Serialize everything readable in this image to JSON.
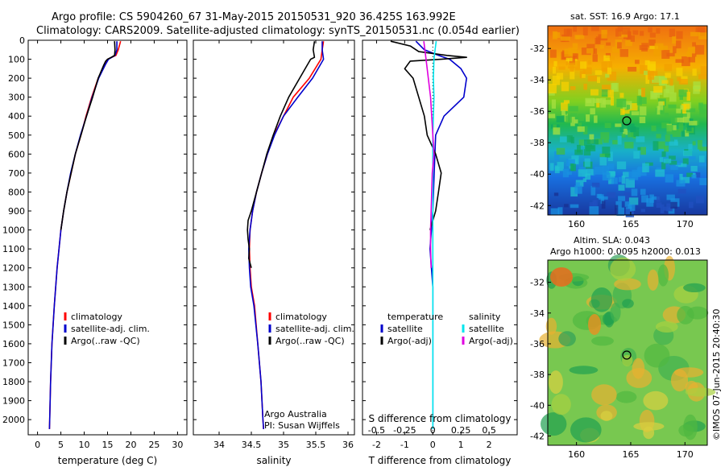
{
  "header": {
    "line1": "Argo profile: CS 5904260_67 31-May-2015 20150531_920 36.425S 163.992E",
    "line2": "Climatology: CARS2009. Satellite-adjusted climatology: synTS_20150531.nc (0.054d earlier)"
  },
  "colors": {
    "climatology": "#ff0000",
    "satellite": "#0000cc",
    "argo": "#000000",
    "salinity_sat": "#00e6ee",
    "salinity_argo": "#e000e0"
  },
  "chart_data": [
    {
      "id": "temperature",
      "type": "line",
      "xlabel": "temperature (deg C)",
      "xlim": [
        -2,
        32
      ],
      "xticks": [
        0,
        5,
        10,
        15,
        20,
        25,
        30
      ],
      "ylim": [
        0,
        2080
      ],
      "yticks": [
        0,
        100,
        200,
        300,
        400,
        500,
        600,
        700,
        800,
        900,
        1000,
        1100,
        1200,
        1300,
        1400,
        1500,
        1600,
        1700,
        1800,
        1900,
        2000
      ],
      "legend": [
        "climatology",
        "satellite-adj. clim.",
        "Argo(..raw -QC)"
      ],
      "series": [
        {
          "name": "climatology",
          "depth": [
            5,
            50,
            80,
            100,
            130,
            200,
            300,
            400,
            500,
            600,
            700,
            800,
            900,
            1000,
            1200,
            1400,
            1600,
            1800,
            2000,
            2050
          ],
          "values": [
            17.8,
            17.3,
            16.8,
            15.0,
            14.5,
            13.0,
            11.6,
            10.4,
            9.3,
            8.1,
            7.2,
            6.3,
            5.6,
            5.0,
            4.2,
            3.6,
            3.1,
            2.8,
            2.6,
            2.55
          ]
        },
        {
          "name": "satellite-adj. clim.",
          "depth": [
            5,
            50,
            80,
            100,
            130,
            200,
            300,
            400,
            500,
            600,
            700,
            800,
            900,
            1000,
            1200,
            1400,
            1600,
            1800,
            2000,
            2050
          ],
          "values": [
            17.0,
            17.0,
            16.6,
            15.2,
            14.5,
            13.1,
            11.7,
            10.5,
            9.2,
            8.1,
            7.1,
            6.3,
            5.6,
            5.0,
            4.2,
            3.6,
            3.1,
            2.8,
            2.6,
            2.55
          ]
        },
        {
          "name": "Argo(..raw -QC)",
          "depth": [
            5,
            50,
            80,
            90,
            100,
            110,
            130,
            200,
            300,
            400,
            500,
            600,
            700,
            800,
            900,
            1000
          ],
          "values": [
            16.5,
            16.6,
            16.5,
            15.8,
            15.0,
            14.6,
            14.2,
            13.0,
            11.8,
            10.5,
            9.3,
            8.1,
            7.2,
            6.3,
            5.6,
            5.0
          ]
        }
      ],
      "credit": []
    },
    {
      "id": "salinity",
      "type": "line",
      "xlabel": "salinity",
      "xlim": [
        33.6,
        36.1
      ],
      "xticks": [
        34,
        34.5,
        35,
        35.5,
        36
      ],
      "xticklabels": [
        "34",
        "34.5",
        "35",
        "35.5",
        "36"
      ],
      "ylim": [
        0,
        2080
      ],
      "legend": [
        "climatology",
        "satellite-adj. clim.",
        "Argo(..raw -QC)"
      ],
      "series": [
        {
          "name": "climatology",
          "depth": [
            5,
            50,
            100,
            200,
            300,
            400,
            500,
            600,
            700,
            800,
            900,
            1000,
            1100,
            1200,
            1300,
            1400,
            1600,
            1800,
            2000,
            2050
          ],
          "values": [
            35.62,
            35.6,
            35.58,
            35.4,
            35.15,
            35.0,
            34.85,
            34.75,
            34.66,
            34.58,
            34.52,
            34.48,
            34.47,
            34.48,
            34.5,
            34.55,
            34.6,
            34.65,
            34.68,
            34.69
          ]
        },
        {
          "name": "satellite-adj. clim.",
          "depth": [
            5,
            50,
            100,
            200,
            300,
            400,
            500,
            600,
            700,
            800,
            900,
            1000,
            1100,
            1200,
            1300,
            1400,
            1600,
            1800,
            2000,
            2050
          ],
          "values": [
            35.6,
            35.6,
            35.62,
            35.45,
            35.22,
            35.0,
            34.86,
            34.75,
            34.66,
            34.58,
            34.52,
            34.48,
            34.46,
            34.47,
            34.49,
            34.54,
            34.6,
            34.65,
            34.68,
            34.69
          ]
        },
        {
          "name": "Argo(..raw -QC)",
          "depth": [
            5,
            50,
            90,
            100,
            200,
            300,
            400,
            500,
            600,
            700,
            800,
            900,
            950,
            1000,
            1050,
            1100,
            1150,
            1200
          ],
          "values": [
            35.48,
            35.46,
            35.48,
            35.42,
            35.25,
            35.08,
            34.95,
            34.84,
            34.74,
            34.66,
            34.58,
            34.5,
            34.45,
            34.44,
            34.45,
            34.47,
            34.46,
            34.5
          ]
        }
      ],
      "credit": [
        "Argo Australia",
        "PI: Susan Wijffels"
      ]
    },
    {
      "id": "difference",
      "type": "line",
      "xlabel": "T difference from climatology",
      "xlabel2": "S difference from climatology",
      "xlim": [
        -2.5,
        3
      ],
      "xticks": [
        -2,
        -1,
        0,
        1,
        2
      ],
      "sxticklabels": [
        "-0.5",
        "-0.25",
        "0",
        "0.25",
        "0.5"
      ],
      "ylim": [
        0,
        2080
      ],
      "legend_headings": [
        "temperature",
        "salinity"
      ],
      "legend": [
        "satellite",
        "Argo(-adj)",
        "satellite",
        "Argo(-adj)"
      ],
      "series": [
        {
          "name": "T satellite",
          "depth": [
            5,
            50,
            80,
            100,
            150,
            200,
            300,
            400,
            500,
            700,
            900,
            1100,
            1300,
            1600,
            2000,
            2050
          ],
          "values": [
            -0.6,
            -0.3,
            0.2,
            0.6,
            1.0,
            1.2,
            1.1,
            0.4,
            0.1,
            0.05,
            0.0,
            -0.1,
            0.0,
            0.0,
            0.0,
            0.0
          ]
        },
        {
          "name": "T Argo(-adj)",
          "depth": [
            5,
            30,
            60,
            80,
            90,
            100,
            110,
            150,
            200,
            300,
            400,
            500,
            600,
            700,
            800,
            900,
            1000
          ],
          "values": [
            -1.5,
            -0.8,
            -0.5,
            0.5,
            1.2,
            0.3,
            -0.8,
            -1.0,
            -0.7,
            -0.5,
            -0.3,
            -0.2,
            0.1,
            0.3,
            0.2,
            0.1,
            -0.1
          ]
        },
        {
          "name": "S satellite",
          "depth": [
            5,
            50,
            100,
            200,
            300,
            400,
            500,
            700,
            900,
            1100,
            1300,
            1600,
            2000,
            2050
          ],
          "values": [
            0.03,
            0.02,
            0.01,
            0.005,
            0.01,
            0.005,
            0.0,
            0.0,
            0.0,
            0.0,
            0.0,
            0.0,
            0.0,
            0.0
          ]
        },
        {
          "name": "S Argo(-adj)",
          "depth": [
            5,
            100,
            200,
            300,
            400,
            500,
            600,
            700,
            800,
            900,
            1000,
            1100,
            1200
          ],
          "values": [
            -0.08,
            -0.06,
            -0.04,
            -0.02,
            -0.01,
            0.0,
            0.01,
            -0.005,
            -0.01,
            -0.015,
            -0.02,
            -0.02,
            -0.015
          ]
        }
      ],
      "credit": []
    }
  ],
  "maps": {
    "sst": {
      "title": "sat. SST: 16.9 Argo: 17.1",
      "xticks": [
        "160",
        "165",
        "170"
      ],
      "yticks": [
        "-32",
        "-34",
        "-36",
        "-38",
        "-40",
        "-42"
      ]
    },
    "sla": {
      "title1": "Altim. SLA: 0.043",
      "title2": "Argo h1000: 0.0095 h2000: 0.013",
      "xticks": [
        "160",
        "165",
        "170"
      ],
      "yticks": [
        "-32",
        "-34",
        "-36",
        "-38",
        "-40",
        "-42"
      ]
    },
    "marker": {
      "lon": 164.0,
      "lat": -36.4
    }
  },
  "footer_stamp": "©IMOS 07-Jun-2015 20:40:30"
}
